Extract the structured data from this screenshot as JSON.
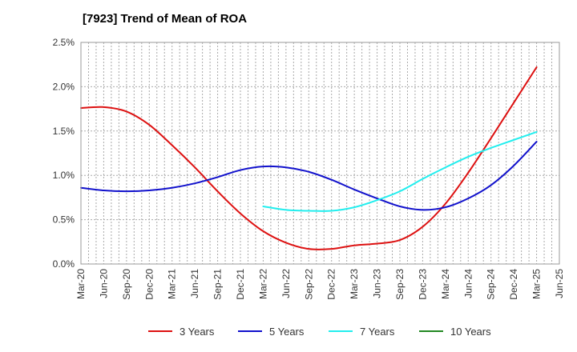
{
  "chart_data": {
    "type": "line",
    "title": "[7923]  Trend of Mean of ROA",
    "xlabel": "",
    "ylabel": "",
    "x_ticks": [
      "Mar-20",
      "Jun-20",
      "Sep-20",
      "Dec-20",
      "Mar-21",
      "Jun-21",
      "Sep-21",
      "Dec-21",
      "Mar-22",
      "Jun-22",
      "Sep-22",
      "Dec-22",
      "Mar-23",
      "Jun-23",
      "Sep-23",
      "Dec-23",
      "Mar-24",
      "Jun-24",
      "Sep-24",
      "Dec-24",
      "Mar-25",
      "Jun-25"
    ],
    "y_ticks": [
      "0.0%",
      "0.5%",
      "1.0%",
      "1.5%",
      "2.0%",
      "2.5%"
    ],
    "ylim": [
      0,
      2.5
    ],
    "y_unit": "%",
    "grid": true,
    "legend_position": "bottom",
    "series": [
      {
        "name": "3 Years",
        "color": "#dd1111",
        "x": [
          "Mar-20",
          "Jun-20",
          "Sep-20",
          "Dec-20",
          "Mar-21",
          "Jun-21",
          "Sep-21",
          "Dec-21",
          "Mar-22",
          "Jun-22",
          "Sep-22",
          "Dec-22",
          "Mar-23",
          "Jun-23",
          "Sep-23",
          "Dec-23",
          "Mar-24",
          "Jun-24",
          "Sep-24",
          "Dec-24",
          "Mar-25"
        ],
        "values": [
          1.76,
          1.77,
          1.72,
          1.57,
          1.34,
          1.09,
          0.82,
          0.57,
          0.37,
          0.24,
          0.17,
          0.17,
          0.21,
          0.23,
          0.27,
          0.42,
          0.68,
          1.03,
          1.42,
          1.82,
          2.22
        ]
      },
      {
        "name": "5 Years",
        "color": "#1111cc",
        "x": [
          "Mar-20",
          "Jun-20",
          "Sep-20",
          "Dec-20",
          "Mar-21",
          "Jun-21",
          "Sep-21",
          "Dec-21",
          "Mar-22",
          "Jun-22",
          "Sep-22",
          "Dec-22",
          "Mar-23",
          "Jun-23",
          "Sep-23",
          "Dec-23",
          "Mar-24",
          "Jun-24",
          "Sep-24",
          "Dec-24",
          "Mar-25"
        ],
        "values": [
          0.86,
          0.83,
          0.82,
          0.83,
          0.86,
          0.91,
          0.98,
          1.06,
          1.1,
          1.09,
          1.04,
          0.95,
          0.84,
          0.74,
          0.65,
          0.61,
          0.64,
          0.74,
          0.89,
          1.11,
          1.38
        ]
      },
      {
        "name": "7 Years",
        "color": "#22eeee",
        "x": [
          "Mar-22",
          "Jun-22",
          "Sep-22",
          "Dec-22",
          "Mar-23",
          "Jun-23",
          "Sep-23",
          "Dec-23",
          "Mar-24",
          "Jun-24",
          "Sep-24",
          "Dec-24",
          "Mar-25"
        ],
        "values": [
          0.65,
          0.61,
          0.6,
          0.6,
          0.64,
          0.72,
          0.82,
          0.96,
          1.09,
          1.21,
          1.31,
          1.4,
          1.49
        ]
      },
      {
        "name": "10 Years",
        "color": "#228822",
        "x": [],
        "values": []
      }
    ]
  }
}
